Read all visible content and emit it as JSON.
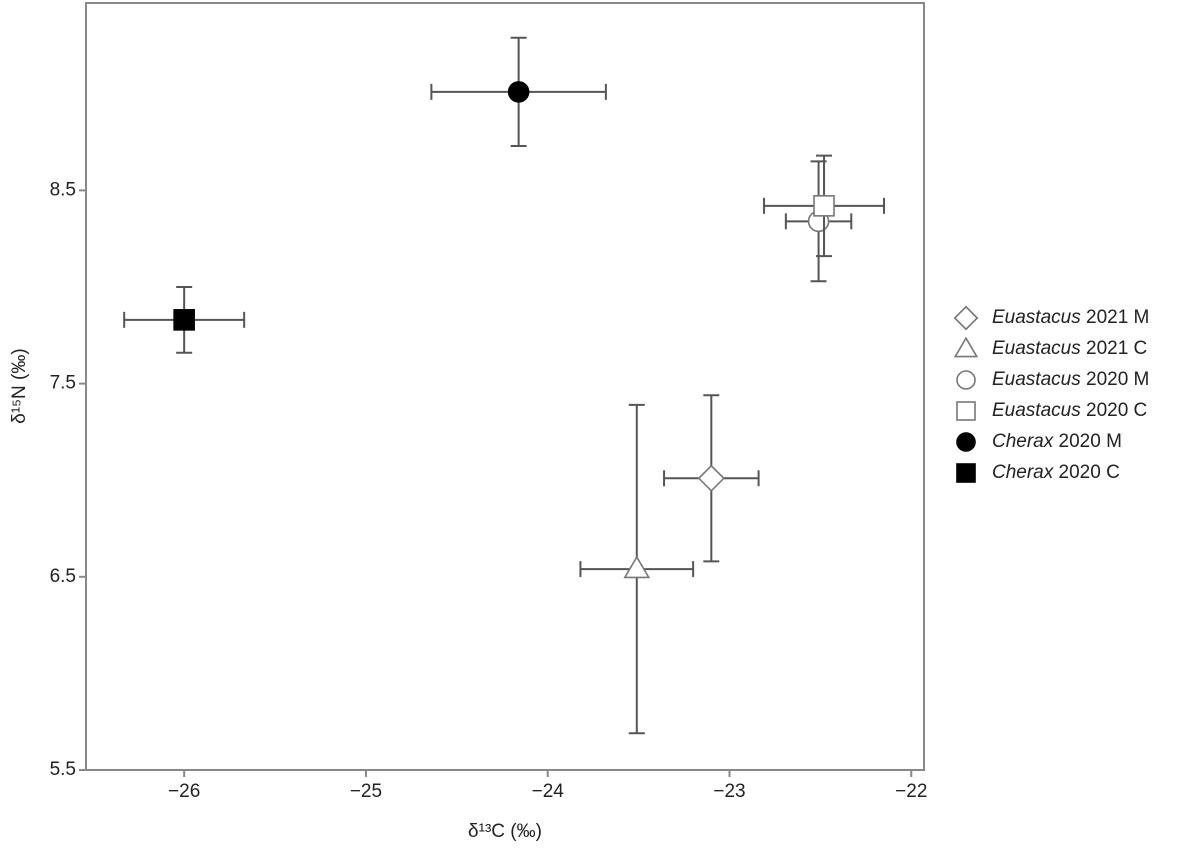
{
  "chart_data": {
    "type": "scatter",
    "x_label": "δ¹³C (‰)",
    "y_label": "δ¹⁵N (‰)",
    "xlim": [
      -26.54,
      -21.93
    ],
    "ylim": [
      5.5,
      9.47
    ],
    "xticks": [
      {
        "value": -26,
        "label": "−26"
      },
      {
        "value": -25,
        "label": "−25"
      },
      {
        "value": -24,
        "label": "−24"
      },
      {
        "value": -23,
        "label": "−23"
      },
      {
        "value": -22,
        "label": "−22"
      }
    ],
    "yticks": [
      5.5,
      6.5,
      7.5,
      8.5
    ],
    "legend": "right",
    "errorbar_color": "#555555",
    "series": [
      {
        "name": "Euastacus 2021 M",
        "marker": "diamond",
        "color": "#777777",
        "fill": "none",
        "x": [
          -23.1
        ],
        "values": [
          7.01
        ],
        "xerr": [
          0.26
        ],
        "yerr": [
          0.43
        ]
      },
      {
        "name": "Euastacus 2021 C",
        "marker": "triangle",
        "color": "#777777",
        "fill": "none",
        "x": [
          -23.51
        ],
        "values": [
          6.54
        ],
        "xerr": [
          0.31
        ],
        "yerr": [
          0.85
        ]
      },
      {
        "name": "Euastacus 2020 M",
        "marker": "circle",
        "color": "#777777",
        "fill": "none",
        "x": [
          -22.51
        ],
        "values": [
          8.34
        ],
        "xerr": [
          0.18
        ],
        "yerr": [
          0.31
        ]
      },
      {
        "name": "Euastacus 2020 C",
        "marker": "square",
        "color": "#777777",
        "fill": "none",
        "x": [
          -22.48
        ],
        "values": [
          8.42
        ],
        "xerr": [
          0.33
        ],
        "yerr": [
          0.26
        ]
      },
      {
        "name": "Cherax 2020 M",
        "marker": "circle",
        "color": "#000000",
        "fill": "#000000",
        "x": [
          -24.16
        ],
        "values": [
          9.01
        ],
        "xerr": [
          0.48
        ],
        "yerr": [
          0.28
        ]
      },
      {
        "name": "Cherax 2020 C",
        "marker": "square",
        "color": "#000000",
        "fill": "#000000",
        "x": [
          -26.0
        ],
        "values": [
          7.83
        ],
        "xerr": [
          0.33
        ],
        "yerr": [
          0.17
        ]
      }
    ]
  }
}
